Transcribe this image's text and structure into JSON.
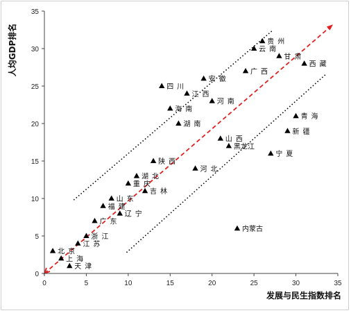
{
  "chart_data": {
    "type": "scatter",
    "xlabel": "发展与民生指数排名",
    "ylabel": "人均GDP排名",
    "xlim": [
      0,
      35
    ],
    "ylim": [
      0,
      35
    ],
    "xticks": [
      0,
      5,
      10,
      15,
      20,
      25,
      30,
      35
    ],
    "yticks": [
      0,
      5,
      10,
      15,
      20,
      25,
      30,
      35
    ],
    "grid": false,
    "marker": "triangle",
    "marker_color": "#000000",
    "points": [
      {
        "label": "北京",
        "x": 1,
        "y": 3
      },
      {
        "label": "上海",
        "x": 2,
        "y": 2
      },
      {
        "label": "天津",
        "x": 3,
        "y": 1
      },
      {
        "label": "江苏",
        "x": 4,
        "y": 4
      },
      {
        "label": "浙江",
        "x": 5,
        "y": 5
      },
      {
        "label": "广东",
        "x": 6,
        "y": 7
      },
      {
        "label": "福建",
        "x": 7,
        "y": 9
      },
      {
        "label": "山东",
        "x": 8,
        "y": 10
      },
      {
        "label": "辽宁",
        "x": 9,
        "y": 8
      },
      {
        "label": "重庆",
        "x": 10,
        "y": 12
      },
      {
        "label": "湖北",
        "x": 11,
        "y": 13
      },
      {
        "label": "吉林",
        "x": 12,
        "y": 11
      },
      {
        "label": "陕西",
        "x": 13,
        "y": 15
      },
      {
        "label": "四川",
        "x": 14,
        "y": 25
      },
      {
        "label": "海南",
        "x": 15,
        "y": 22
      },
      {
        "label": "湖南",
        "x": 16,
        "y": 20
      },
      {
        "label": "江西",
        "x": 17,
        "y": 24
      },
      {
        "label": "河北",
        "x": 18,
        "y": 14
      },
      {
        "label": "安徽",
        "x": 19,
        "y": 26
      },
      {
        "label": "河南",
        "x": 20,
        "y": 23
      },
      {
        "label": "山西",
        "x": 21,
        "y": 18
      },
      {
        "label": "黑龙江",
        "x": 22,
        "y": 17
      },
      {
        "label": "内蒙古",
        "x": 23,
        "y": 6
      },
      {
        "label": "广西",
        "x": 24,
        "y": 27
      },
      {
        "label": "云南",
        "x": 25,
        "y": 30
      },
      {
        "label": "贵州",
        "x": 26,
        "y": 31
      },
      {
        "label": "宁夏",
        "x": 27,
        "y": 16
      },
      {
        "label": "甘肃",
        "x": 28,
        "y": 29
      },
      {
        "label": "新疆",
        "x": 29,
        "y": 19
      },
      {
        "label": "青海",
        "x": 30,
        "y": 21
      },
      {
        "label": "西藏",
        "x": 31,
        "y": 28
      }
    ],
    "annotations": [
      {
        "kind": "diagonal-arrow",
        "style": "dashed",
        "color": "#e02020",
        "from": [
          0,
          0
        ],
        "to": [
          34.3,
          33.1
        ]
      },
      {
        "kind": "band-line",
        "style": "dotted",
        "color": "#000000",
        "from": [
          3.5,
          9.8
        ],
        "to": [
          27.3,
          32.5
        ]
      },
      {
        "kind": "band-line",
        "style": "dotted",
        "color": "#000000",
        "from": [
          9.8,
          2.8
        ],
        "to": [
          33.5,
          26.5
        ]
      }
    ]
  }
}
